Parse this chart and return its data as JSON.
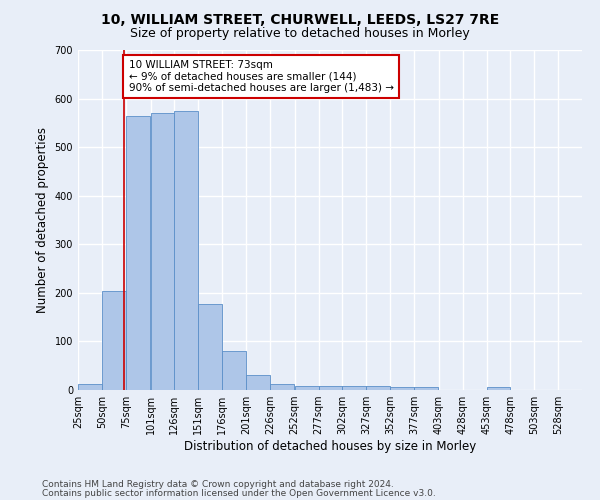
{
  "title1": "10, WILLIAM STREET, CHURWELL, LEEDS, LS27 7RE",
  "title2": "Size of property relative to detached houses in Morley",
  "xlabel": "Distribution of detached houses by size in Morley",
  "ylabel": "Number of detached properties",
  "bin_labels": [
    "25sqm",
    "50sqm",
    "75sqm",
    "101sqm",
    "126sqm",
    "151sqm",
    "176sqm",
    "201sqm",
    "226sqm",
    "252sqm",
    "277sqm",
    "302sqm",
    "327sqm",
    "352sqm",
    "377sqm",
    "403sqm",
    "428sqm",
    "453sqm",
    "478sqm",
    "503sqm",
    "528sqm"
  ],
  "bar_heights": [
    12,
    204,
    565,
    570,
    575,
    178,
    80,
    30,
    12,
    8,
    8,
    8,
    8,
    7,
    7,
    0,
    0,
    7,
    0,
    0,
    0
  ],
  "bar_color": "#aec6e8",
  "bar_edge_color": "#5b8fc9",
  "annotation_text": "10 WILLIAM STREET: 73sqm\n← 9% of detached houses are smaller (144)\n90% of semi-detached houses are larger (1,483) →",
  "annotation_box_color": "#ffffff",
  "annotation_box_edge": "#cc0000",
  "vline_x": 73,
  "vline_color": "#cc0000",
  "ylim": [
    0,
    700
  ],
  "yticks": [
    0,
    100,
    200,
    300,
    400,
    500,
    600,
    700
  ],
  "footnote1": "Contains HM Land Registry data © Crown copyright and database right 2024.",
  "footnote2": "Contains public sector information licensed under the Open Government Licence v3.0.",
  "bg_color": "#e8eef8",
  "plot_bg_color": "#e8eef8",
  "grid_color": "#ffffff",
  "title1_fontsize": 10,
  "title2_fontsize": 9,
  "xlabel_fontsize": 8.5,
  "ylabel_fontsize": 8.5,
  "footnote_fontsize": 6.5,
  "tick_fontsize": 7,
  "annotation_fontsize": 7.5
}
